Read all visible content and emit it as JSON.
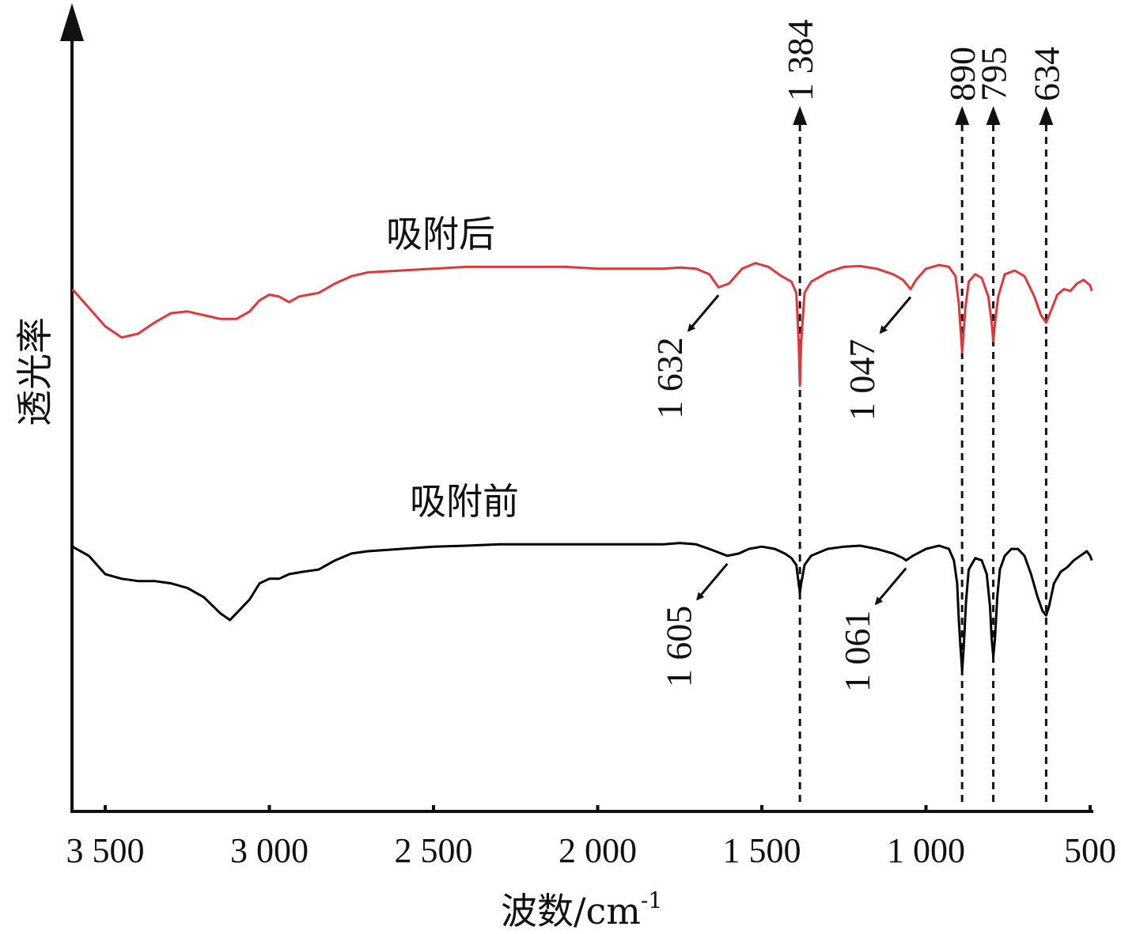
{
  "chart_data": {
    "type": "line",
    "xlabel": "波数/cm",
    "xlabel_sup": "-1",
    "ylabel": "透光率",
    "x_range": [
      3600,
      490
    ],
    "x_reversed": true,
    "x_ticks": [
      3500,
      3000,
      2500,
      2000,
      1500,
      1000,
      500
    ],
    "x_tick_labels": [
      "3 500",
      "3 000",
      "2 500",
      "2 000",
      "1 500",
      "1 000",
      "500"
    ],
    "y_ticks_shown": false,
    "series": [
      {
        "name": "吸附后",
        "color": "#e0373b",
        "points": [
          [
            3600,
            0.92
          ],
          [
            3550,
            0.87
          ],
          [
            3500,
            0.82
          ],
          [
            3450,
            0.79
          ],
          [
            3400,
            0.8
          ],
          [
            3350,
            0.83
          ],
          [
            3300,
            0.855
          ],
          [
            3250,
            0.86
          ],
          [
            3200,
            0.85
          ],
          [
            3150,
            0.84
          ],
          [
            3100,
            0.84
          ],
          [
            3060,
            0.86
          ],
          [
            3030,
            0.89
          ],
          [
            3000,
            0.905
          ],
          [
            2970,
            0.9
          ],
          [
            2940,
            0.885
          ],
          [
            2910,
            0.9
          ],
          [
            2880,
            0.905
          ],
          [
            2850,
            0.91
          ],
          [
            2800,
            0.935
          ],
          [
            2750,
            0.955
          ],
          [
            2700,
            0.965
          ],
          [
            2600,
            0.97
          ],
          [
            2500,
            0.975
          ],
          [
            2400,
            0.98
          ],
          [
            2300,
            0.98
          ],
          [
            2200,
            0.98
          ],
          [
            2100,
            0.98
          ],
          [
            2000,
            0.975
          ],
          [
            1900,
            0.975
          ],
          [
            1800,
            0.975
          ],
          [
            1750,
            0.978
          ],
          [
            1700,
            0.975
          ],
          [
            1660,
            0.96
          ],
          [
            1632,
            0.925
          ],
          [
            1600,
            0.935
          ],
          [
            1560,
            0.975
          ],
          [
            1520,
            0.99
          ],
          [
            1480,
            0.98
          ],
          [
            1440,
            0.955
          ],
          [
            1410,
            0.94
          ],
          [
            1395,
            0.91
          ],
          [
            1388,
            0.78
          ],
          [
            1384,
            0.66
          ],
          [
            1380,
            0.78
          ],
          [
            1370,
            0.91
          ],
          [
            1350,
            0.94
          ],
          [
            1300,
            0.965
          ],
          [
            1250,
            0.98
          ],
          [
            1200,
            0.982
          ],
          [
            1150,
            0.975
          ],
          [
            1100,
            0.96
          ],
          [
            1070,
            0.945
          ],
          [
            1047,
            0.92
          ],
          [
            1030,
            0.945
          ],
          [
            1000,
            0.975
          ],
          [
            960,
            0.985
          ],
          [
            930,
            0.98
          ],
          [
            910,
            0.955
          ],
          [
            900,
            0.88
          ],
          [
            890,
            0.75
          ],
          [
            880,
            0.87
          ],
          [
            870,
            0.94
          ],
          [
            850,
            0.96
          ],
          [
            830,
            0.95
          ],
          [
            810,
            0.9
          ],
          [
            800,
            0.83
          ],
          [
            795,
            0.78
          ],
          [
            790,
            0.83
          ],
          [
            780,
            0.9
          ],
          [
            760,
            0.96
          ],
          [
            730,
            0.97
          ],
          [
            700,
            0.955
          ],
          [
            670,
            0.9
          ],
          [
            650,
            0.85
          ],
          [
            634,
            0.83
          ],
          [
            620,
            0.86
          ],
          [
            600,
            0.905
          ],
          [
            580,
            0.92
          ],
          [
            560,
            0.915
          ],
          [
            540,
            0.935
          ],
          [
            520,
            0.945
          ],
          [
            500,
            0.93
          ],
          [
            495,
            0.915
          ]
        ]
      },
      {
        "name": "吸附前",
        "color": "#000000",
        "points": [
          [
            3600,
            0.96
          ],
          [
            3550,
            0.94
          ],
          [
            3500,
            0.9
          ],
          [
            3450,
            0.89
          ],
          [
            3400,
            0.885
          ],
          [
            3350,
            0.885
          ],
          [
            3300,
            0.88
          ],
          [
            3250,
            0.87
          ],
          [
            3200,
            0.85
          ],
          [
            3150,
            0.815
          ],
          [
            3120,
            0.8
          ],
          [
            3100,
            0.815
          ],
          [
            3060,
            0.845
          ],
          [
            3030,
            0.88
          ],
          [
            3000,
            0.89
          ],
          [
            2970,
            0.89
          ],
          [
            2940,
            0.9
          ],
          [
            2900,
            0.905
          ],
          [
            2850,
            0.91
          ],
          [
            2800,
            0.93
          ],
          [
            2750,
            0.945
          ],
          [
            2700,
            0.95
          ],
          [
            2600,
            0.955
          ],
          [
            2500,
            0.96
          ],
          [
            2400,
            0.962
          ],
          [
            2300,
            0.965
          ],
          [
            2200,
            0.965
          ],
          [
            2100,
            0.965
          ],
          [
            2000,
            0.965
          ],
          [
            1900,
            0.965
          ],
          [
            1800,
            0.965
          ],
          [
            1750,
            0.968
          ],
          [
            1700,
            0.965
          ],
          [
            1660,
            0.955
          ],
          [
            1605,
            0.94
          ],
          [
            1570,
            0.945
          ],
          [
            1540,
            0.955
          ],
          [
            1500,
            0.96
          ],
          [
            1460,
            0.955
          ],
          [
            1430,
            0.945
          ],
          [
            1410,
            0.935
          ],
          [
            1395,
            0.92
          ],
          [
            1388,
            0.88
          ],
          [
            1384,
            0.86
          ],
          [
            1380,
            0.88
          ],
          [
            1370,
            0.92
          ],
          [
            1350,
            0.94
          ],
          [
            1300,
            0.955
          ],
          [
            1250,
            0.96
          ],
          [
            1200,
            0.962
          ],
          [
            1150,
            0.955
          ],
          [
            1100,
            0.945
          ],
          [
            1070,
            0.935
          ],
          [
            1061,
            0.93
          ],
          [
            1040,
            0.94
          ],
          [
            1000,
            0.955
          ],
          [
            960,
            0.962
          ],
          [
            930,
            0.955
          ],
          [
            915,
            0.93
          ],
          [
            905,
            0.88
          ],
          [
            900,
            0.8
          ],
          [
            895,
            0.74
          ],
          [
            890,
            0.69
          ],
          [
            885,
            0.74
          ],
          [
            878,
            0.84
          ],
          [
            870,
            0.91
          ],
          [
            850,
            0.935
          ],
          [
            830,
            0.93
          ],
          [
            815,
            0.9
          ],
          [
            805,
            0.83
          ],
          [
            800,
            0.76
          ],
          [
            795,
            0.72
          ],
          [
            790,
            0.76
          ],
          [
            783,
            0.85
          ],
          [
            775,
            0.91
          ],
          [
            760,
            0.94
          ],
          [
            740,
            0.955
          ],
          [
            720,
            0.955
          ],
          [
            700,
            0.94
          ],
          [
            680,
            0.9
          ],
          [
            660,
            0.85
          ],
          [
            645,
            0.82
          ],
          [
            634,
            0.81
          ],
          [
            625,
            0.83
          ],
          [
            610,
            0.88
          ],
          [
            590,
            0.905
          ],
          [
            570,
            0.915
          ],
          [
            550,
            0.93
          ],
          [
            530,
            0.94
          ],
          [
            510,
            0.95
          ],
          [
            500,
            0.94
          ],
          [
            495,
            0.93
          ]
        ]
      }
    ],
    "peak_lines": [
      {
        "x": 1384,
        "label": "1 384"
      },
      {
        "x": 890,
        "label": "890"
      },
      {
        "x": 795,
        "label": "795"
      },
      {
        "x": 634,
        "label": "634"
      }
    ],
    "peak_annotations": [
      {
        "x": 1632,
        "label": "1 632",
        "series": "吸附后"
      },
      {
        "x": 1047,
        "label": "1 047",
        "series": "吸附后"
      },
      {
        "x": 1605,
        "label": "1 605",
        "series": "吸附前"
      },
      {
        "x": 1061,
        "label": "1 061",
        "series": "吸附前"
      }
    ]
  }
}
